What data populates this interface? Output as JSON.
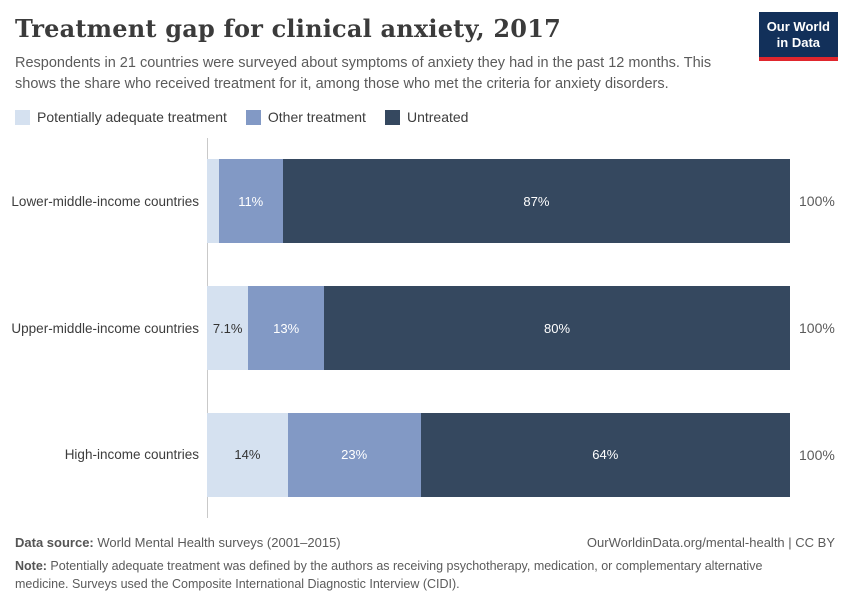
{
  "header": {
    "title": "Treatment gap for clinical anxiety, 2017",
    "subtitle": "Respondents in 21 countries were surveyed about symptoms of anxiety they had in the past 12 months. This shows the share who received treatment for it, among those who met the criteria for anxiety disorders.",
    "logo_line1": "Our World",
    "logo_line2": "in Data"
  },
  "colors": {
    "potentially_adequate": "#d5e1f0",
    "other_treatment": "#8299c5",
    "untreated": "#35485f",
    "logo_navy": "#12305a",
    "logo_red": "#e0262d",
    "axis_line": "#c9c9c9"
  },
  "chart_data": {
    "type": "bar",
    "stacked": true,
    "orientation": "horizontal",
    "xlim": [
      0,
      100
    ],
    "legend_position": "top",
    "grid": false,
    "categories": [
      "Lower-middle-income countries",
      "Upper-middle-income countries",
      "High-income countries"
    ],
    "series": [
      {
        "name": "Potentially adequate treatment",
        "color": "#d5e1f0",
        "label_color": "#333333",
        "values": [
          2,
          7.1,
          14
        ],
        "labels": [
          "",
          "7.1%",
          "14%"
        ]
      },
      {
        "name": "Other treatment",
        "color": "#8299c5",
        "label_color": "#ffffff",
        "values": [
          11,
          13,
          23
        ],
        "labels": [
          "11%",
          "13%",
          "23%"
        ]
      },
      {
        "name": "Untreated",
        "color": "#35485f",
        "label_color": "#ffffff",
        "values": [
          87,
          80,
          64
        ],
        "labels": [
          "87%",
          "80%",
          "64%"
        ]
      }
    ],
    "totals": [
      "100%",
      "100%",
      "100%"
    ]
  },
  "footer": {
    "data_source_label": "Data source:",
    "data_source_text": " World Mental Health surveys (2001–2015)",
    "link": "OurWorldinData.org/mental-health | CC BY",
    "note_label": "Note:",
    "note_text": " Potentially adequate treatment was defined by the authors as receiving psychotherapy, medication, or complementary alternative medicine. Surveys used the Composite International Diagnostic Interview (CIDI)."
  }
}
